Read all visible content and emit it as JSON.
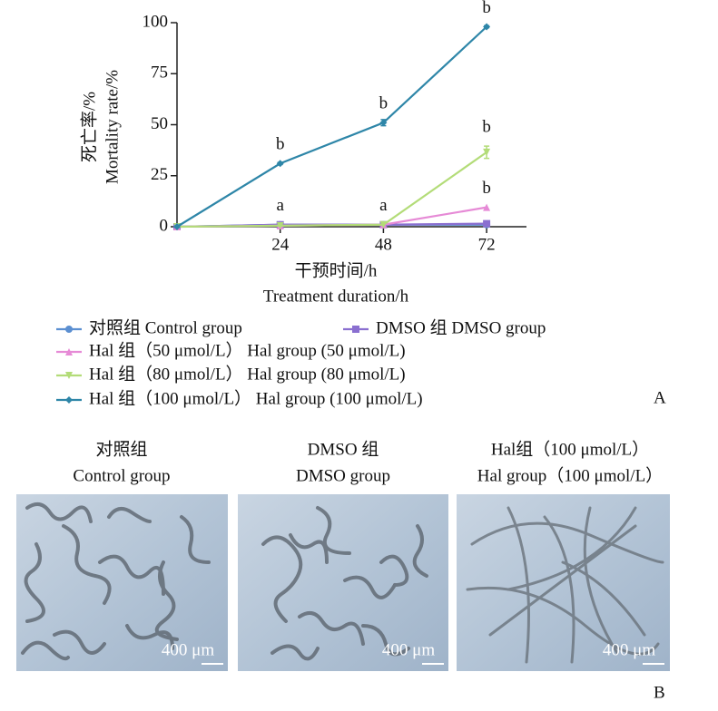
{
  "chart_data": {
    "type": "line",
    "y_label": [
      "死亡率/%",
      "Mortality  rate/%"
    ],
    "x_label": [
      "干预时间/h",
      "Treatment  duration/h"
    ],
    "x": [
      0,
      24,
      48,
      72
    ],
    "xlim": [
      0,
      80
    ],
    "xticks": [
      24,
      48,
      72
    ],
    "ylim": [
      0,
      100
    ],
    "yticks": [
      0,
      25,
      50,
      75,
      100
    ],
    "series": [
      {
        "name": "对照组  Control  group",
        "color": "#5b8fd1",
        "marker": "circle",
        "values": [
          0,
          1,
          1,
          1
        ]
      },
      {
        "name": "DMSO 组  DMSO  group",
        "color": "#8a6fd0",
        "marker": "square",
        "values": [
          0,
          1,
          1,
          1.5
        ]
      },
      {
        "name": "Hal 组（50 μmol/L） Hal  group (50 μmol/L)",
        "color": "#e68ad6",
        "marker": "triangle",
        "values": [
          0,
          0.5,
          1,
          9.5
        ]
      },
      {
        "name": "Hal 组（80 μmol/L） Hal  group (80 μmol/L)",
        "color": "#b3dc78",
        "marker": "triangle-down",
        "values": [
          0,
          0.5,
          1,
          36.5
        ],
        "errors": [
          0,
          0,
          0,
          3
        ]
      },
      {
        "name": "Hal 组（100 μmol/L） Hal  group (100 μmol/L)",
        "color": "#2e86a8",
        "marker": "diamond",
        "values": [
          0,
          31,
          51,
          98
        ],
        "errors": [
          0,
          0.5,
          1.5,
          0.5
        ]
      }
    ],
    "annotations": [
      {
        "text": "b",
        "x": 24,
        "y": 31
      },
      {
        "text": "a",
        "x": 24,
        "y": 1
      },
      {
        "text": "b",
        "x": 48,
        "y": 51
      },
      {
        "text": "a",
        "x": 48,
        "y": 1
      },
      {
        "text": "b",
        "x": 72,
        "y": 98
      },
      {
        "text": "b",
        "x": 72,
        "y": 39.5
      },
      {
        "text": "b",
        "x": 72,
        "y": 9.5
      }
    ]
  },
  "panel_a": "A",
  "panel_b": "B",
  "images": [
    {
      "title": [
        "对照组",
        "Control  group"
      ],
      "scale": "400 μm"
    },
    {
      "title": [
        "DMSO 组",
        "DMSO  group"
      ],
      "scale": "400 μm"
    },
    {
      "title": [
        "Hal组（100 μmol/L）",
        "Hal group（100 μmol/L）"
      ],
      "scale": "400 μm"
    }
  ]
}
